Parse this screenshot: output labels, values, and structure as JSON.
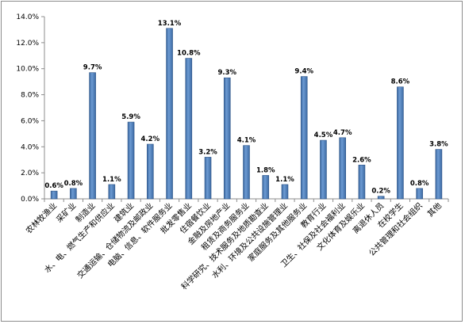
{
  "chart_data": {
    "type": "bar",
    "title": "",
    "xlabel": "",
    "ylabel": "",
    "ylim": [
      0,
      14
    ],
    "y_ticks": [
      "0.0%",
      "2.0%",
      "4.0%",
      "6.0%",
      "8.0%",
      "10.0%",
      "12.0%",
      "14.0%"
    ],
    "grid": false,
    "legend": "none",
    "bar_color": "#4f81bd",
    "categories": [
      "农林牧渔业",
      "采矿业",
      "制造业",
      "水、电、燃气生产和供应业",
      "建筑业",
      "交通运输、仓储物流及邮政业",
      "电脑、信息、软件服务业",
      "批发零售业",
      "住宿餐饮业",
      "金融及房地产业",
      "租赁及商务服务业",
      "科学研究、技术服务及地质勘查业",
      "水利、环境及公共设施管理业",
      "家庭服务及其他服务业",
      "教育行业",
      "卫生、社保及社会福利业",
      "文化体育及娱乐业",
      "离退休人员",
      "在校学生",
      "公共管理和社会组织",
      "其他"
    ],
    "values": [
      0.6,
      0.8,
      9.7,
      1.1,
      5.9,
      4.2,
      13.1,
      10.8,
      3.2,
      9.3,
      4.1,
      1.8,
      1.1,
      9.4,
      4.5,
      4.7,
      2.6,
      0.2,
      8.6,
      0.8,
      3.8
    ],
    "value_labels": [
      "0.6%",
      "0.8%",
      "9.7%",
      "1.1%",
      "5.9%",
      "4.2%",
      "13.1%",
      "10.8%",
      "3.2%",
      "9.3%",
      "4.1%",
      "1.8%",
      "1.1%",
      "9.4%",
      "4.5%",
      "4.7%",
      "2.6%",
      "0.2%",
      "8.6%",
      "0.8%",
      "3.8%"
    ]
  }
}
